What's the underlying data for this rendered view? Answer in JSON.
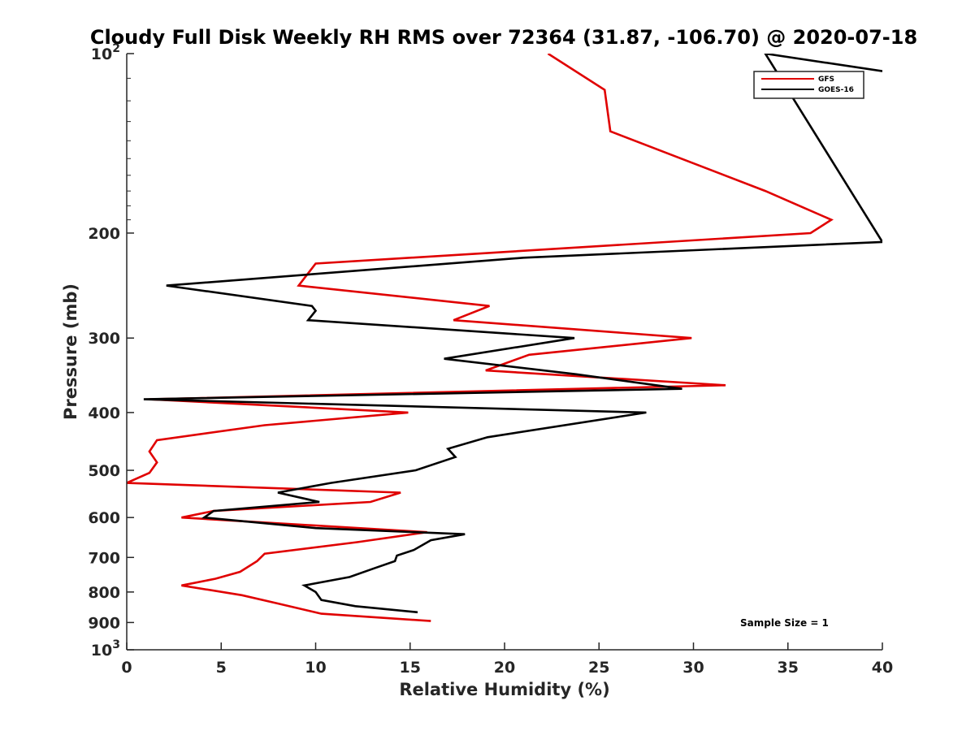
{
  "chart_data": {
    "type": "line",
    "title": "Cloudy Full Disk Weekly RH RMS over 72364 (31.87, -106.70) @ 2020-07-18",
    "xlabel": "Relative Humidity (%)",
    "ylabel": "Pressure (mb)",
    "xlim": [
      0,
      40
    ],
    "ylim": [
      100,
      1000
    ],
    "yscale": "log",
    "y_reversed": true,
    "grid": false,
    "legend_position": "top-right",
    "xticks": [
      "0",
      "5",
      "10",
      "15",
      "20",
      "25",
      "30",
      "35",
      "40"
    ],
    "xtick_values": [
      0,
      5,
      10,
      15,
      20,
      25,
      30,
      35,
      40
    ],
    "yticks": [
      {
        "value": 100,
        "base": "10",
        "exp": "2"
      },
      {
        "value": 200,
        "label": "200"
      },
      {
        "value": 300,
        "label": "300"
      },
      {
        "value": 400,
        "label": "400"
      },
      {
        "value": 500,
        "label": "500"
      },
      {
        "value": 600,
        "label": "600"
      },
      {
        "value": 700,
        "label": "700"
      },
      {
        "value": 800,
        "label": "800"
      },
      {
        "value": 900,
        "label": "900"
      },
      {
        "value": 1000,
        "base": "10",
        "exp": "3"
      }
    ],
    "annotation": "Sample Size = 1",
    "series": [
      {
        "name": "GFS",
        "color": "#e00000",
        "points": [
          [
            22.3,
            100
          ],
          [
            25.3,
            115
          ],
          [
            25.6,
            135
          ],
          [
            33.8,
            170
          ],
          [
            37.3,
            190
          ],
          [
            36.2,
            200
          ],
          [
            10.0,
            225
          ],
          [
            9.1,
            245
          ],
          [
            19.2,
            265
          ],
          [
            17.3,
            280
          ],
          [
            29.9,
            300
          ],
          [
            21.3,
            320
          ],
          [
            19.0,
            340
          ],
          [
            31.7,
            360
          ],
          [
            1.2,
            380
          ],
          [
            14.9,
            400
          ],
          [
            7.3,
            420
          ],
          [
            1.6,
            445
          ],
          [
            1.2,
            465
          ],
          [
            1.6,
            485
          ],
          [
            1.2,
            505
          ],
          [
            0.0,
            525
          ],
          [
            14.5,
            545
          ],
          [
            12.9,
            565
          ],
          [
            4.6,
            585
          ],
          [
            2.9,
            600
          ],
          [
            15.9,
            635
          ],
          [
            12.2,
            660
          ],
          [
            7.3,
            690
          ],
          [
            6.9,
            710
          ],
          [
            6.0,
            740
          ],
          [
            4.7,
            760
          ],
          [
            2.9,
            780
          ],
          [
            6.1,
            810
          ],
          [
            7.9,
            835
          ],
          [
            10.3,
            870
          ],
          [
            16.1,
            895
          ]
        ]
      },
      {
        "name": "GOES-16",
        "color": "#000000",
        "points": [
          [
            40.0,
            107
          ],
          [
            33.8,
            100
          ],
          [
            40.0,
            207
          ],
          [
            21.0,
            220
          ],
          [
            2.1,
            245
          ],
          [
            9.8,
            265
          ],
          [
            10.0,
            270
          ],
          [
            9.6,
            280
          ],
          [
            23.7,
            300
          ],
          [
            16.8,
            325
          ],
          [
            23.8,
            345
          ],
          [
            29.4,
            365
          ],
          [
            0.9,
            380
          ],
          [
            27.5,
            400
          ],
          [
            19.1,
            440
          ],
          [
            17.0,
            460
          ],
          [
            17.4,
            475
          ],
          [
            15.3,
            500
          ],
          [
            10.8,
            525
          ],
          [
            8.0,
            545
          ],
          [
            10.2,
            565
          ],
          [
            4.6,
            585
          ],
          [
            4.1,
            600
          ],
          [
            10.0,
            625
          ],
          [
            17.9,
            640
          ],
          [
            16.1,
            655
          ],
          [
            15.2,
            680
          ],
          [
            14.3,
            695
          ],
          [
            14.2,
            710
          ],
          [
            13.1,
            730
          ],
          [
            11.8,
            755
          ],
          [
            9.4,
            780
          ],
          [
            10.0,
            800
          ],
          [
            10.3,
            825
          ],
          [
            12.1,
            845
          ],
          [
            15.4,
            865
          ]
        ]
      }
    ]
  }
}
